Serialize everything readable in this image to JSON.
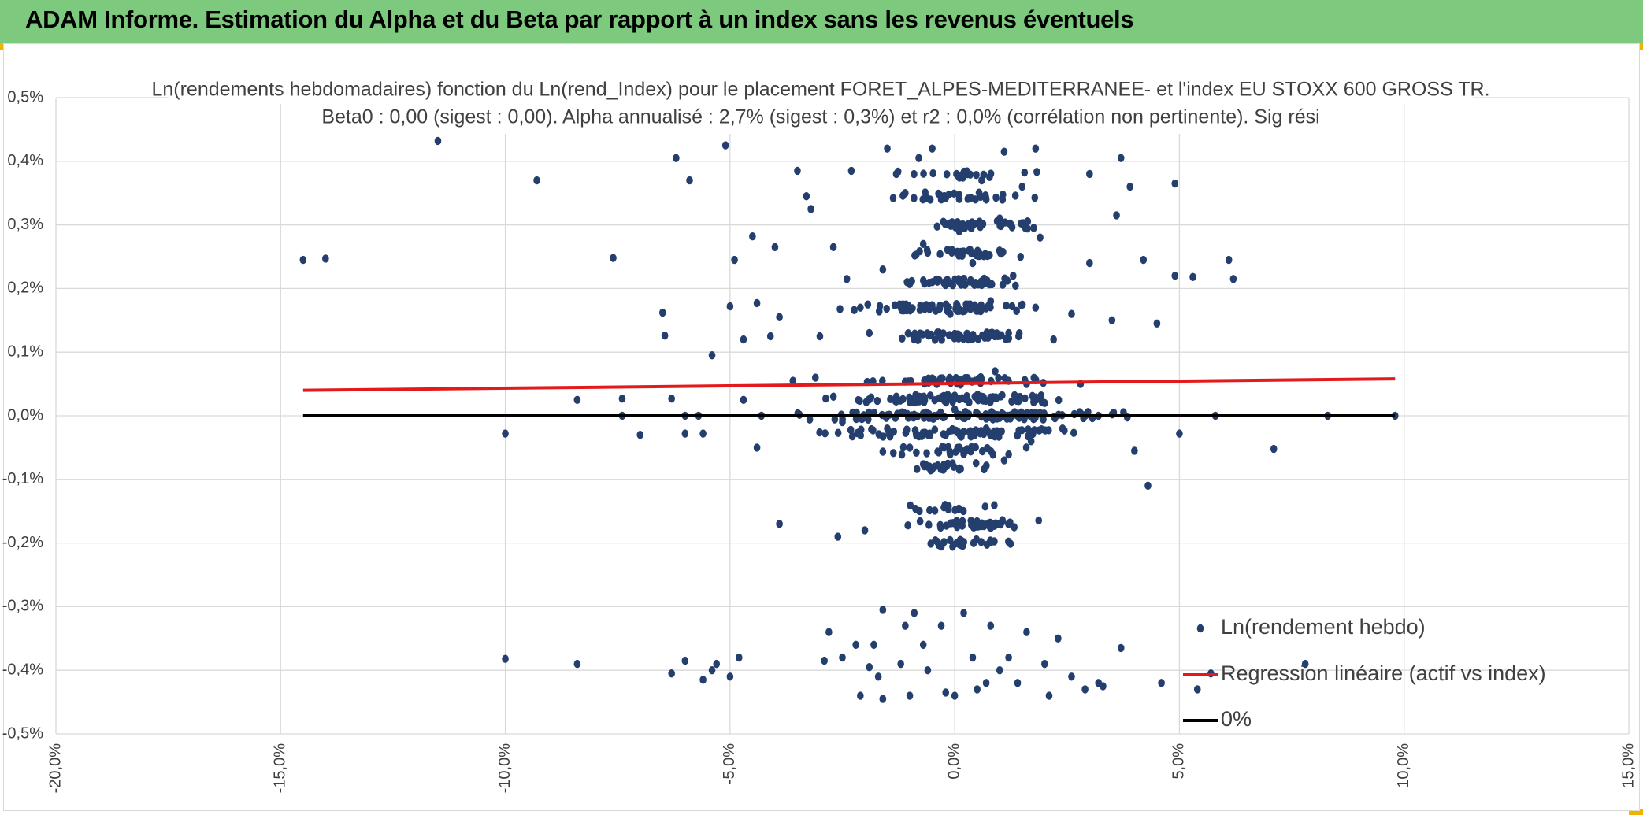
{
  "header": {
    "title": "ADAM Informe. Estimation du Alpha et du Beta par rapport à un index sans les revenus éventuels"
  },
  "colors": {
    "banner": "#7dc97d",
    "points": "#243f6e",
    "regression": "#e31a1c",
    "zero_line": "#000000",
    "grid": "#d9d9d9"
  },
  "chart_data": {
    "type": "scatter",
    "title": "Ln(rendements hebdomadaires) fonction du Ln(rend_Index) pour le placement FORET_ALPES-MEDITERRANEE- et l'index EU STOXX 600 GROSS TR.",
    "subtitle": "Beta0 : 0,00 (sigest : 0,00). Alpha annualisé : 2,7% (sigest : 0,3%) et r2 : 0,0% (corrélation non pertinente). Sig rési",
    "xlim": [
      -20,
      15
    ],
    "ylim": [
      -0.5,
      0.5
    ],
    "x_ticks": [
      "-20,0%",
      "-15,0%",
      "-10,0%",
      "-5,0%",
      "0,0%",
      "5,0%",
      "10,0%",
      "15,0%"
    ],
    "y_ticks": [
      "0,5%",
      "0,4%",
      "0,3%",
      "0,2%",
      "0,1%",
      "0,0%",
      "-0,1%",
      "-0,2%",
      "-0,3%",
      "-0,4%",
      "-0,5%"
    ],
    "legend_position": "bottom-right",
    "series": [
      {
        "name": "Ln(rendement hebdo)",
        "kind": "points",
        "points": [
          [
            -14.5,
            0.245
          ],
          [
            -14.0,
            0.247
          ],
          [
            -11.5,
            0.432
          ],
          [
            -9.3,
            0.37
          ],
          [
            -10.0,
            -0.028
          ],
          [
            -10.0,
            -0.382
          ],
          [
            -8.4,
            0.025
          ],
          [
            -8.4,
            -0.39
          ],
          [
            -7.6,
            0.248
          ],
          [
            -7.4,
            0.027
          ],
          [
            -7.4,
            0.0
          ],
          [
            -7.0,
            -0.03
          ],
          [
            -6.5,
            0.162
          ],
          [
            -6.45,
            0.126
          ],
          [
            -6.3,
            0.027
          ],
          [
            -6.3,
            -0.405
          ],
          [
            -6.2,
            0.405
          ],
          [
            -6.0,
            0.0
          ],
          [
            -6.0,
            -0.028
          ],
          [
            -6.0,
            -0.385
          ],
          [
            -5.9,
            0.37
          ],
          [
            -5.7,
            0.0
          ],
          [
            -5.6,
            -0.028
          ],
          [
            -5.6,
            -0.415
          ],
          [
            -5.4,
            0.095
          ],
          [
            -5.4,
            -0.4
          ],
          [
            -5.3,
            -0.39
          ],
          [
            -5.1,
            0.425
          ],
          [
            -5.0,
            0.172
          ],
          [
            -5.0,
            -0.41
          ],
          [
            -4.9,
            0.245
          ],
          [
            -4.8,
            -0.38
          ],
          [
            -4.7,
            0.12
          ],
          [
            -4.7,
            0.025
          ],
          [
            -4.5,
            0.282
          ],
          [
            -4.4,
            0.177
          ],
          [
            -4.4,
            -0.05
          ],
          [
            -4.3,
            0.0
          ],
          [
            -4.1,
            0.125
          ],
          [
            -4.0,
            0.265
          ],
          [
            -3.9,
            0.155
          ],
          [
            -3.9,
            -0.17
          ],
          [
            -3.6,
            0.055
          ],
          [
            -3.5,
            0.385
          ],
          [
            -3.3,
            0.345
          ],
          [
            -3.2,
            0.325
          ],
          [
            -3.0,
            0.125
          ],
          [
            -2.9,
            -0.385
          ],
          [
            -2.8,
            -0.34
          ],
          [
            -2.7,
            0.265
          ],
          [
            -2.6,
            -0.19
          ],
          [
            -2.5,
            -0.38
          ],
          [
            -2.4,
            0.215
          ],
          [
            -2.3,
            0.385
          ],
          [
            -2.2,
            -0.36
          ],
          [
            -2.1,
            -0.44
          ],
          [
            -2.0,
            -0.18
          ],
          [
            -1.9,
            -0.395
          ],
          [
            -1.8,
            -0.36
          ],
          [
            -1.7,
            -0.41
          ],
          [
            -1.6,
            -0.305
          ],
          [
            -1.6,
            -0.445
          ],
          [
            -1.5,
            0.42
          ],
          [
            -1.3,
            0.38
          ],
          [
            -1.2,
            -0.39
          ],
          [
            -1.1,
            -0.33
          ],
          [
            -1.0,
            -0.44
          ],
          [
            -0.9,
            -0.31
          ],
          [
            -0.8,
            0.405
          ],
          [
            -0.7,
            -0.36
          ],
          [
            -0.6,
            -0.4
          ],
          [
            -0.5,
            0.42
          ],
          [
            -0.3,
            -0.33
          ],
          [
            -0.2,
            -0.435
          ],
          [
            0.0,
            -0.44
          ],
          [
            0.2,
            -0.31
          ],
          [
            0.3,
            0.45
          ],
          [
            0.4,
            -0.38
          ],
          [
            0.5,
            -0.43
          ],
          [
            0.7,
            -0.42
          ],
          [
            0.8,
            -0.33
          ],
          [
            1.0,
            -0.4
          ],
          [
            1.1,
            0.415
          ],
          [
            1.2,
            -0.38
          ],
          [
            1.4,
            -0.42
          ],
          [
            1.6,
            -0.34
          ],
          [
            1.8,
            0.42
          ],
          [
            2.0,
            -0.39
          ],
          [
            2.1,
            -0.44
          ],
          [
            2.3,
            -0.35
          ],
          [
            2.6,
            -0.41
          ],
          [
            2.9,
            -0.43
          ],
          [
            3.0,
            0.38
          ],
          [
            3.2,
            -0.42
          ],
          [
            3.3,
            -0.425
          ],
          [
            3.6,
            0.315
          ],
          [
            3.7,
            0.405
          ],
          [
            3.7,
            -0.365
          ],
          [
            3.9,
            0.36
          ],
          [
            4.0,
            -0.055
          ],
          [
            4.2,
            0.245
          ],
          [
            4.3,
            -0.11
          ],
          [
            4.5,
            0.145
          ],
          [
            4.6,
            -0.42
          ],
          [
            4.9,
            0.365
          ],
          [
            4.9,
            0.22
          ],
          [
            5.0,
            -0.028
          ],
          [
            5.3,
            0.218
          ],
          [
            5.4,
            -0.43
          ],
          [
            5.7,
            -0.405
          ],
          [
            5.8,
            0.0
          ],
          [
            6.1,
            0.245
          ],
          [
            6.2,
            0.215
          ],
          [
            7.1,
            -0.052
          ],
          [
            7.8,
            -0.39
          ],
          [
            8.3,
            0.0
          ],
          [
            9.8,
            0.0
          ]
        ],
        "cluster_points": [
          [
            -3.1,
            0.06
          ],
          [
            -2.7,
            0.03
          ],
          [
            -2.5,
            -0.01
          ],
          [
            -2.1,
            0.17
          ],
          [
            -1.9,
            0.13
          ],
          [
            -1.6,
            0.23
          ],
          [
            -1.5,
            -0.02
          ],
          [
            -1.3,
            0.03
          ],
          [
            -1.2,
            0.17
          ],
          [
            -1.1,
            0.35
          ],
          [
            -1.0,
            -0.05
          ],
          [
            -0.9,
            0.12
          ],
          [
            -0.8,
            0.03
          ],
          [
            -0.7,
            0.27
          ],
          [
            -0.6,
            -0.08
          ],
          [
            -0.5,
            0.21
          ],
          [
            -0.4,
            0.05
          ],
          [
            -0.3,
            0.34
          ],
          [
            -0.2,
            -0.03
          ],
          [
            -0.1,
            0.16
          ],
          [
            0.0,
            0.01
          ],
          [
            0.1,
            0.29
          ],
          [
            0.2,
            -0.06
          ],
          [
            0.3,
            0.12
          ],
          [
            0.4,
            0.24
          ],
          [
            0.5,
            0.03
          ],
          [
            0.6,
            0.37
          ],
          [
            0.7,
            -0.02
          ],
          [
            0.8,
            0.18
          ],
          [
            0.9,
            0.07
          ],
          [
            1.0,
            0.31
          ],
          [
            1.1,
            -0.07
          ],
          [
            1.2,
            0.13
          ],
          [
            1.3,
            0.22
          ],
          [
            1.4,
            0.0
          ],
          [
            1.5,
            0.36
          ],
          [
            1.6,
            0.05
          ],
          [
            1.7,
            -0.04
          ],
          [
            1.8,
            0.17
          ],
          [
            1.9,
            0.28
          ],
          [
            2.0,
            0.02
          ],
          [
            2.2,
            0.12
          ],
          [
            2.4,
            -0.02
          ],
          [
            2.6,
            0.16
          ],
          [
            2.8,
            0.05
          ],
          [
            3.0,
            0.24
          ],
          [
            3.2,
            0.0
          ],
          [
            3.5,
            0.15
          ]
        ],
        "dense_band": {
          "note": "Dense weekly-return clusters around x = 0% (approximate, as drawn)",
          "bands": [
            {
              "y": 0.0,
              "x_from": -4.0,
              "x_to": 4.5,
              "count": 120
            },
            {
              "y": 0.027,
              "x_from": -3.5,
              "x_to": 3.5,
              "count": 80
            },
            {
              "y": -0.027,
              "x_from": -3.5,
              "x_to": 3.5,
              "count": 80
            },
            {
              "y": 0.055,
              "x_from": -3.0,
              "x_to": 3.0,
              "count": 45
            },
            {
              "y": -0.055,
              "x_from": -2.0,
              "x_to": 2.0,
              "count": 30
            },
            {
              "y": -0.08,
              "x_from": -1.5,
              "x_to": 1.5,
              "count": 25
            },
            {
              "y": 0.125,
              "x_from": -2.5,
              "x_to": 2.5,
              "count": 55
            },
            {
              "y": 0.17,
              "x_from": -3.0,
              "x_to": 2.5,
              "count": 70
            },
            {
              "y": 0.21,
              "x_from": -1.5,
              "x_to": 2.0,
              "count": 45
            },
            {
              "y": 0.255,
              "x_from": -1.5,
              "x_to": 2.0,
              "count": 35
            },
            {
              "y": 0.3,
              "x_from": -1.5,
              "x_to": 2.5,
              "count": 35
            },
            {
              "y": 0.345,
              "x_from": -2.0,
              "x_to": 2.5,
              "count": 30
            },
            {
              "y": 0.38,
              "x_from": -2.0,
              "x_to": 2.0,
              "count": 20
            },
            {
              "y": -0.17,
              "x_from": -1.5,
              "x_to": 2.5,
              "count": 45
            },
            {
              "y": -0.2,
              "x_from": -1.0,
              "x_to": 1.5,
              "count": 25
            },
            {
              "y": -0.145,
              "x_from": -2.0,
              "x_to": 1.5,
              "count": 15
            }
          ]
        }
      },
      {
        "name": "Regression linéaire (actif vs index)",
        "kind": "line",
        "x": [
          -14.5,
          9.8
        ],
        "y": [
          0.04,
          0.058
        ]
      },
      {
        "name": "0%",
        "kind": "line",
        "x": [
          -14.5,
          9.8
        ],
        "y": [
          0.0,
          0.0
        ]
      }
    ]
  }
}
